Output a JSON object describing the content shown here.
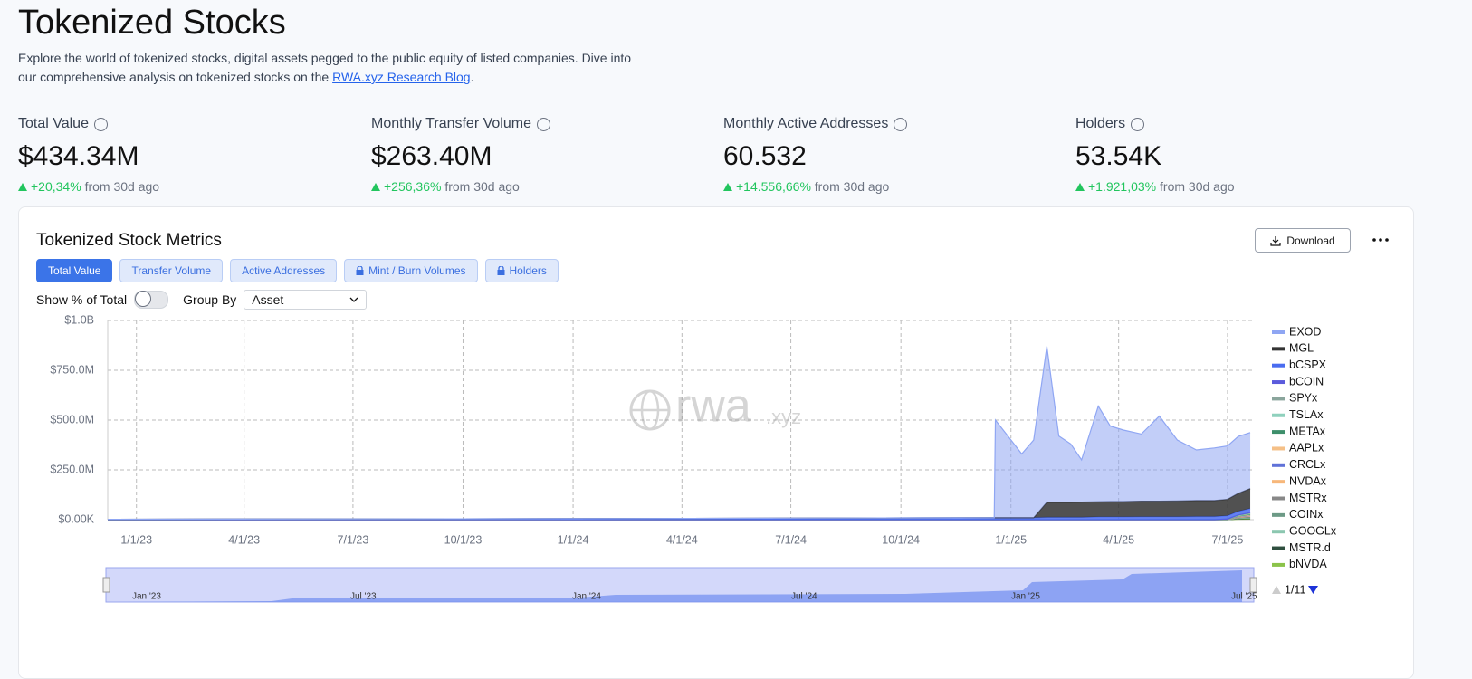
{
  "header": {
    "title": "Tokenized Stocks",
    "description": "Explore the world of tokenized stocks, digital assets pegged to the public equity of listed companies. Dive into our comprehensive analysis on tokenized stocks on the",
    "link": "RWA.xyz Research Blog",
    "period": "."
  },
  "stats": [
    {
      "label": "Total Value",
      "value": "$434.34M",
      "change": "+20,34%",
      "note": "from 30d ago"
    },
    {
      "label": "Monthly Transfer Volume",
      "value": "$263.40M",
      "change": "+256,36%",
      "note": "from 30d ago"
    },
    {
      "label": "Monthly Active Addresses",
      "value": "60.532",
      "change": "+14.556,66%",
      "note": "from 30d ago"
    },
    {
      "label": "Holders",
      "value": "53.54K",
      "change": "+1.921,03%",
      "note": "from 30d ago"
    }
  ],
  "panel": {
    "title": "Tokenized Stock Metrics",
    "download": "Download",
    "tabs": [
      "Total Value",
      "Transfer Volume",
      "Active Addresses",
      "Mint / Burn Volumes",
      "Holders"
    ],
    "toggle_label": "Show % of Total",
    "group_by_label": "Group By",
    "group_by_value": "Asset",
    "watermark": "rwa",
    "watermark_suffix": ".xyz",
    "legend_page": "1/11",
    "navigator_labels": [
      "Jan '23",
      "Jul '23",
      "Jan '24",
      "Jul '24",
      "Jan '25",
      "Jul '25"
    ]
  },
  "chart_data": {
    "type": "area",
    "stacked": true,
    "grid": true,
    "legend": "right",
    "x": [
      "12/8/22",
      "1/1/24",
      "12/18/24",
      "12/19/24",
      "1/1/25",
      "1/10/25",
      "1/20/25",
      "1/31/25",
      "2/10/25",
      "2/20/25",
      "3/1/25",
      "3/15/25",
      "3/25/25",
      "4/5/25",
      "4/20/25",
      "5/5/25",
      "5/20/25",
      "6/5/25",
      "6/20/25",
      "7/1/25",
      "7/10/25",
      "7/20/25"
    ],
    "xlim": [
      "12/8/22",
      "7/23/25"
    ],
    "xticks": [
      "1/1/23",
      "4/1/23",
      "7/1/23",
      "10/1/23",
      "1/1/24",
      "4/1/24",
      "7/1/24",
      "10/1/24",
      "1/1/25",
      "4/1/25",
      "7/1/25"
    ],
    "ylim": [
      0,
      1000000000
    ],
    "yticks": [
      {
        "value": 0,
        "label": "$0.00K"
      },
      {
        "value": 250000000,
        "label": "$250.0M"
      },
      {
        "value": 500000000,
        "label": "$500.0M"
      },
      {
        "value": 750000000,
        "label": "$750.0M"
      },
      {
        "value": 1000000000,
        "label": "$1.0B"
      }
    ],
    "series": [
      {
        "name": "EXOD",
        "color": "#8fa6f3",
        "values": [
          0,
          0,
          0,
          490000000,
          390000000,
          320000000,
          390000000,
          783000000,
          333000000,
          293000000,
          212000000,
          480000000,
          379000000,
          359000000,
          337000000,
          427000000,
          306000000,
          254000000,
          264000000,
          268000000,
          286000000,
          281000000
        ]
      },
      {
        "name": "MGL",
        "color": "#333333",
        "values": [
          0,
          0,
          0,
          0,
          0,
          0,
          0,
          75000000,
          75000000,
          75000000,
          76000000,
          76000000,
          77000000,
          77000000,
          78000000,
          78000000,
          79000000,
          80000000,
          80000000,
          82000000,
          90000000,
          100000000
        ]
      },
      {
        "name": "bCSPX",
        "color": "#4a6cf0",
        "values": [
          2000000,
          5000000,
          10000000,
          10000000,
          10000000,
          10000000,
          10000000,
          12000000,
          12000000,
          12000000,
          12000000,
          14000000,
          14000000,
          14000000,
          15000000,
          15000000,
          15000000,
          16000000,
          16000000,
          16000000,
          18000000,
          20000000
        ]
      },
      {
        "name": "bCOIN",
        "color": "#5b5bdc",
        "values": [
          0,
          0,
          0,
          0,
          0,
          0,
          0,
          0,
          0,
          0,
          0,
          0,
          0,
          0,
          0,
          0,
          0,
          0,
          0,
          4000000,
          2000000,
          3000000
        ]
      },
      {
        "name": "SPYx",
        "color": "#8aa59c",
        "values": [
          0,
          0,
          0,
          0,
          0,
          0,
          0,
          0,
          0,
          0,
          0,
          0,
          0,
          0,
          0,
          0,
          0,
          0,
          0,
          0,
          2000000,
          3000000
        ]
      },
      {
        "name": "TSLAx",
        "color": "#8fd1bd",
        "values": [
          0,
          0,
          0,
          0,
          0,
          0,
          0,
          0,
          0,
          0,
          0,
          0,
          0,
          0,
          0,
          0,
          0,
          0,
          0,
          0,
          2000000,
          3000000
        ]
      },
      {
        "name": "METAx",
        "color": "#3d8f6b",
        "values": [
          0,
          0,
          0,
          0,
          0,
          0,
          0,
          0,
          0,
          0,
          0,
          0,
          0,
          0,
          0,
          0,
          0,
          0,
          0,
          0,
          2000000,
          3000000
        ]
      },
      {
        "name": "AAPLx",
        "color": "#f5c087",
        "values": [
          0,
          0,
          0,
          0,
          0,
          0,
          0,
          0,
          0,
          0,
          0,
          0,
          0,
          0,
          0,
          0,
          0,
          0,
          0,
          0,
          2000000,
          3000000
        ]
      },
      {
        "name": "CRCLx",
        "color": "#6072d8",
        "values": [
          0,
          0,
          0,
          0,
          0,
          0,
          0,
          0,
          0,
          0,
          0,
          0,
          0,
          0,
          0,
          0,
          0,
          0,
          0,
          0,
          2000000,
          3000000
        ]
      },
      {
        "name": "NVDAx",
        "color": "#f7b77a",
        "values": [
          0,
          0,
          0,
          0,
          0,
          0,
          0,
          0,
          0,
          0,
          0,
          0,
          0,
          0,
          0,
          0,
          0,
          0,
          0,
          0,
          2000000,
          3000000
        ]
      },
      {
        "name": "MSTRx",
        "color": "#888888",
        "values": [
          0,
          0,
          0,
          0,
          0,
          0,
          0,
          0,
          0,
          0,
          0,
          0,
          0,
          0,
          0,
          0,
          0,
          0,
          0,
          0,
          2000000,
          3000000
        ]
      },
      {
        "name": "COINx",
        "color": "#6d9a86",
        "values": [
          0,
          0,
          0,
          0,
          0,
          0,
          0,
          0,
          0,
          0,
          0,
          0,
          0,
          0,
          0,
          0,
          0,
          0,
          0,
          0,
          2000000,
          3000000
        ]
      },
      {
        "name": "GOOGLx",
        "color": "#8cc7b0",
        "values": [
          0,
          0,
          0,
          0,
          0,
          0,
          0,
          0,
          0,
          0,
          0,
          0,
          0,
          0,
          0,
          0,
          0,
          0,
          0,
          0,
          2000000,
          3000000
        ]
      },
      {
        "name": "MSTR.d",
        "color": "#2f4f3f",
        "values": [
          0,
          0,
          0,
          0,
          0,
          0,
          0,
          0,
          0,
          0,
          0,
          0,
          0,
          0,
          0,
          0,
          0,
          0,
          0,
          0,
          2000000,
          3000000
        ]
      },
      {
        "name": "bNVDA",
        "color": "#8bc34a",
        "values": [
          0,
          0,
          0,
          0,
          0,
          0,
          0,
          0,
          0,
          0,
          0,
          0,
          0,
          0,
          0,
          0,
          0,
          0,
          0,
          0,
          2000000,
          3000000
        ]
      }
    ]
  }
}
